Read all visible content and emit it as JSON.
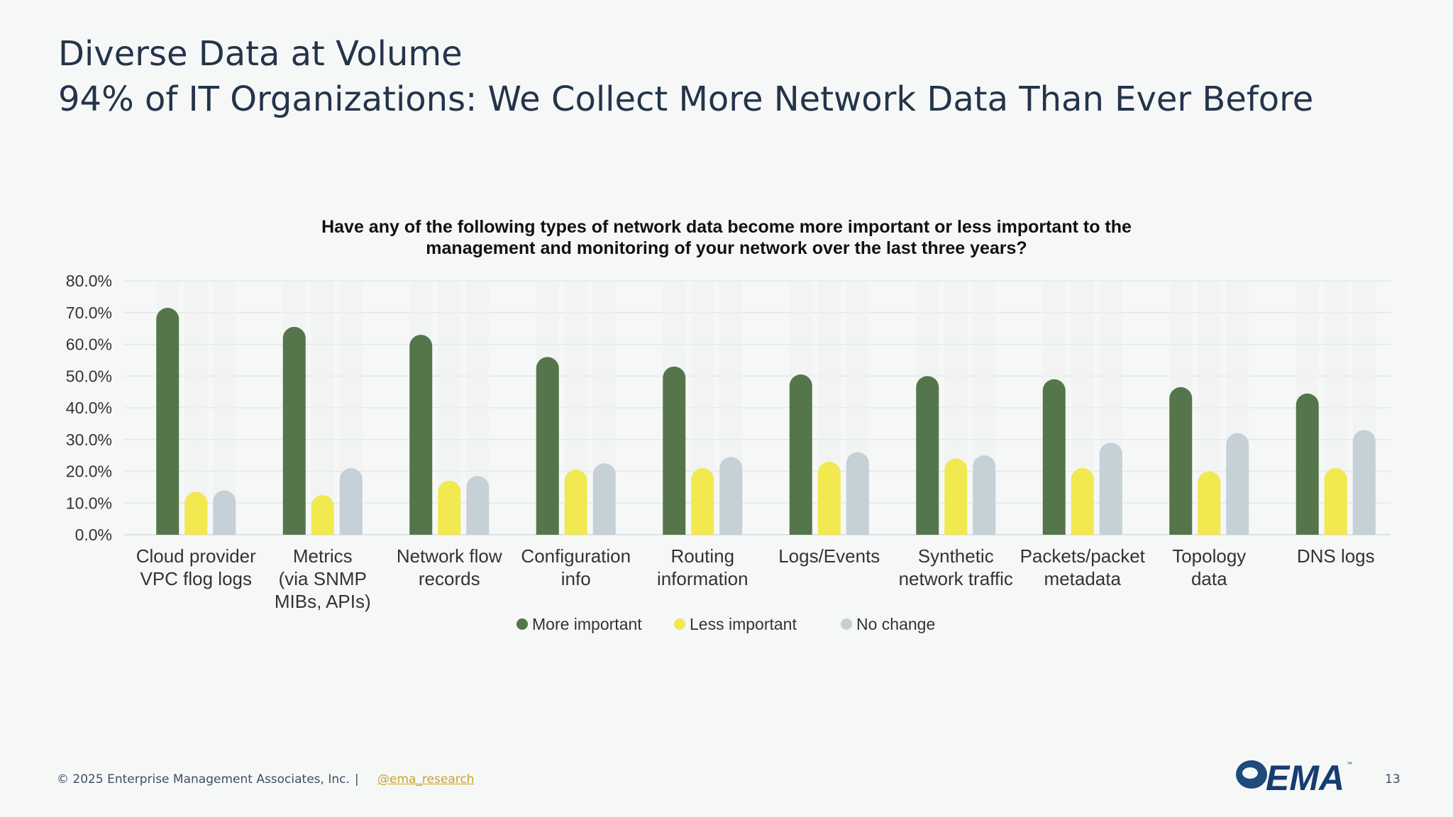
{
  "slide": {
    "title_line1": "Diverse Data at Volume",
    "title_line2": "94% of IT Organizations: We Collect More Network Data Than Ever Before",
    "page_number": "13"
  },
  "footer": {
    "copyright": "© 2025 Enterprise Management Associates, Inc.",
    "separator": "|",
    "handle": "@ema_research"
  },
  "logo": {
    "text": "EMA",
    "tm": "™"
  },
  "colors": {
    "more": "#55764b",
    "less": "#f2e84f",
    "nochange": "#c5d0d7",
    "grid": "#e3e7ea",
    "text": "#24344a"
  },
  "chart_data": {
    "type": "bar",
    "title_lines": [
      "Have any of the following types of network data become more important or less important to the",
      "management and monitoring of your network over the last three years?"
    ],
    "categories": [
      [
        "Cloud provider",
        "VPC flog logs"
      ],
      [
        "Metrics",
        "(via SNMP",
        "MIBs, APIs)"
      ],
      [
        "Network flow",
        "records"
      ],
      [
        "Configuration",
        "info"
      ],
      [
        "Routing",
        "information"
      ],
      [
        "Logs/Events"
      ],
      [
        "Synthetic",
        "network traffic"
      ],
      [
        "Packets/packet",
        "metadata"
      ],
      [
        "Topology",
        "data"
      ],
      [
        "DNS logs"
      ]
    ],
    "series": [
      {
        "name": "More important",
        "color": "#55764b",
        "values": [
          71.5,
          65.5,
          63.0,
          56.0,
          53.0,
          50.5,
          50.0,
          49.0,
          46.5,
          44.5
        ]
      },
      {
        "name": "Less important",
        "color": "#f2e84f",
        "values": [
          13.5,
          12.5,
          17.0,
          20.5,
          21.0,
          23.0,
          24.0,
          21.0,
          20.0,
          21.0
        ]
      },
      {
        "name": "No change",
        "color": "#c5d0d7",
        "values": [
          14.0,
          21.0,
          18.5,
          22.5,
          24.5,
          26.0,
          25.0,
          29.0,
          32.0,
          33.0
        ]
      }
    ],
    "yticks": [
      "0.0%",
      "10.0%",
      "20.0%",
      "30.0%",
      "40.0%",
      "50.0%",
      "60.0%",
      "70.0%",
      "80.0%"
    ],
    "ylim": [
      0,
      80
    ],
    "grid": true,
    "legend_position": "bottom"
  }
}
